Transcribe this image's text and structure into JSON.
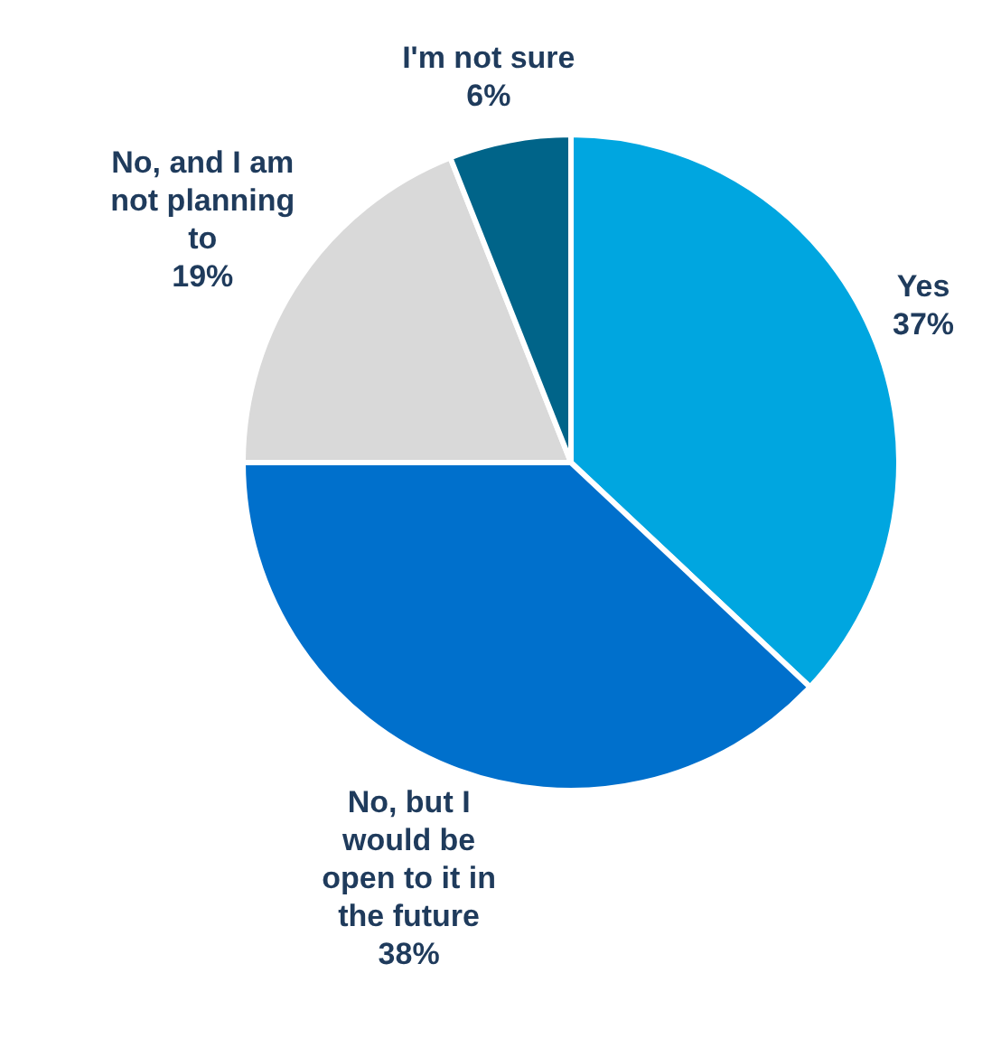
{
  "chart_data": {
    "type": "pie",
    "categories": [
      "Yes",
      "No, but I would be open to it in the future",
      "No, and I am not planning to",
      "I'm not sure"
    ],
    "values": [
      37,
      38,
      19,
      6
    ],
    "value_labels": [
      "37%",
      "38%",
      "19%",
      "6%"
    ],
    "colors": [
      "#00a6e0",
      "#0070cc",
      "#d9d9d9",
      "#006489"
    ],
    "legend": false
  }
}
